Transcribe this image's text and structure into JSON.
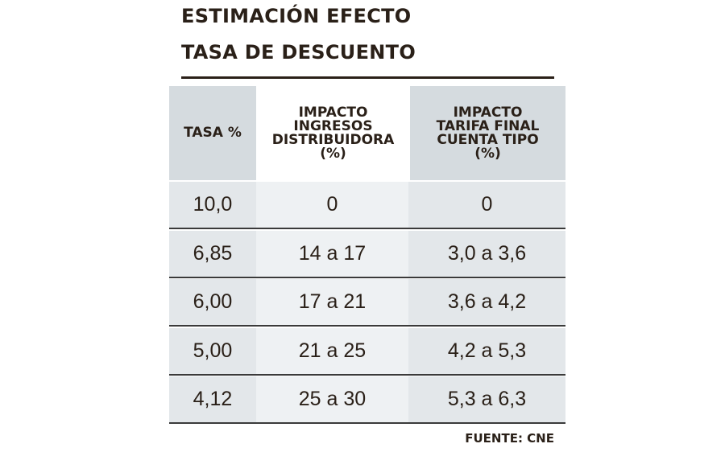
{
  "header": {
    "title": [
      "ESTIMACIÓN EFECTO",
      "TASA DE DESCUENTO"
    ]
  },
  "table": {
    "columns": [
      [
        "TASA %"
      ],
      [
        "IMPACTO",
        "INGRESOS",
        "DISTRIBUIDORA",
        "(%)"
      ],
      [
        "IMPACTO",
        "TARIFA FINAL",
        "CUENTA TIPO",
        "(%)"
      ]
    ],
    "rows": [
      [
        "10,0",
        "0",
        "0"
      ],
      [
        "6,85",
        "14 a 17",
        "3,0 a 3,6"
      ],
      [
        "6,00",
        "17 a 21",
        "3,6 a 4,2"
      ],
      [
        "5,00",
        "21 a 25",
        "4,2 a 5,3"
      ],
      [
        "4,12",
        "25 a 30",
        "5,3 a 6,3"
      ]
    ]
  },
  "source": "FUENTE: CNE"
}
